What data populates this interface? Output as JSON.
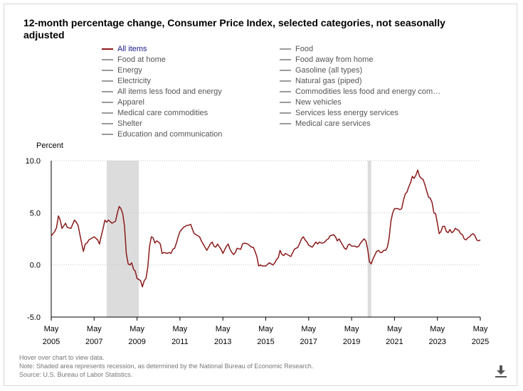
{
  "title": "12-month percentage change, Consumer Price Index, selected categories, not seasonally adjusted",
  "legend": [
    {
      "label": "All items",
      "active": true
    },
    {
      "label": "Food",
      "active": false
    },
    {
      "label": "Food at home",
      "active": false
    },
    {
      "label": "Food away from home",
      "active": false
    },
    {
      "label": "Energy",
      "active": false
    },
    {
      "label": "Gasoline (all types)",
      "active": false
    },
    {
      "label": "Electricity",
      "active": false
    },
    {
      "label": "Natural gas (piped)",
      "active": false
    },
    {
      "label": "All items less food and energy",
      "active": false
    },
    {
      "label": "Commodities less food and energy com…",
      "active": false
    },
    {
      "label": "Apparel",
      "active": false
    },
    {
      "label": "New vehicles",
      "active": false
    },
    {
      "label": "Medical care commodities",
      "active": false
    },
    {
      "label": "Services less energy services",
      "active": false
    },
    {
      "label": "Shelter",
      "active": false
    },
    {
      "label": "Medical care services",
      "active": false
    },
    {
      "label": "Education and communication",
      "active": false
    }
  ],
  "notes": {
    "hover": "Hover over chart to view data.",
    "recession": "Note: Shaded area represents recession, as determined by the National Bureau of Economic Research.",
    "source": "Source: U.S. Bureau of Labor Statistics."
  },
  "colors": {
    "series": "#8b1a1a",
    "recession": "#dcdcdc",
    "grid": "#c8c8c8"
  },
  "icons": {
    "download": "download-icon"
  },
  "chart_data": {
    "type": "line",
    "ylabel": "Percent",
    "ylim": [
      -5.0,
      10.0
    ],
    "yticks": [
      "10.0",
      "5.0",
      "0.0",
      "-5.0"
    ],
    "xlim": [
      2005.333,
      2025.333
    ],
    "xticks": [
      {
        "month": "May",
        "year": "2005",
        "x": 2005.333
      },
      {
        "month": "May",
        "year": "2007",
        "x": 2007.333
      },
      {
        "month": "May",
        "year": "2009",
        "x": 2009.333
      },
      {
        "month": "May",
        "year": "2011",
        "x": 2011.333
      },
      {
        "month": "May",
        "year": "2013",
        "x": 2013.333
      },
      {
        "month": "May",
        "year": "2015",
        "x": 2015.333
      },
      {
        "month": "May",
        "year": "2017",
        "x": 2017.333
      },
      {
        "month": "May",
        "year": "2019",
        "x": 2019.333
      },
      {
        "month": "May",
        "year": "2021",
        "x": 2021.333
      },
      {
        "month": "May",
        "year": "2023",
        "x": 2023.333
      },
      {
        "month": "May",
        "year": "2025",
        "x": 2025.333
      }
    ],
    "grid": "horizontal dotted",
    "recessions": [
      [
        2007.917,
        2009.417
      ],
      [
        2020.083,
        2020.25
      ]
    ],
    "series": [
      {
        "name": "All items",
        "points": [
          [
            2005.333,
            2.8
          ],
          [
            2005.5,
            3.2
          ],
          [
            2005.583,
            3.6
          ],
          [
            2005.667,
            4.7
          ],
          [
            2005.75,
            4.3
          ],
          [
            2005.833,
            3.5
          ],
          [
            2006.0,
            4.0
          ],
          [
            2006.083,
            3.6
          ],
          [
            2006.25,
            3.5
          ],
          [
            2006.417,
            4.3
          ],
          [
            2006.5,
            4.1
          ],
          [
            2006.583,
            3.8
          ],
          [
            2006.75,
            2.1
          ],
          [
            2006.833,
            1.3
          ],
          [
            2006.917,
            2.0
          ],
          [
            2007.0,
            2.1
          ],
          [
            2007.083,
            2.4
          ],
          [
            2007.25,
            2.6
          ],
          [
            2007.333,
            2.7
          ],
          [
            2007.5,
            2.4
          ],
          [
            2007.583,
            2.0
          ],
          [
            2007.667,
            2.8
          ],
          [
            2007.75,
            3.5
          ],
          [
            2007.833,
            4.3
          ],
          [
            2007.917,
            4.1
          ],
          [
            2008.0,
            4.3
          ],
          [
            2008.167,
            4.0
          ],
          [
            2008.333,
            4.2
          ],
          [
            2008.417,
            5.0
          ],
          [
            2008.5,
            5.6
          ],
          [
            2008.583,
            5.4
          ],
          [
            2008.667,
            4.9
          ],
          [
            2008.75,
            3.7
          ],
          [
            2008.833,
            1.1
          ],
          [
            2008.917,
            0.1
          ],
          [
            2009.0,
            0.0
          ],
          [
            2009.083,
            0.2
          ],
          [
            2009.167,
            -0.4
          ],
          [
            2009.25,
            -0.6
          ],
          [
            2009.333,
            -1.3
          ],
          [
            2009.5,
            -1.5
          ],
          [
            2009.583,
            -2.1
          ],
          [
            2009.667,
            -1.5
          ],
          [
            2009.75,
            -1.3
          ],
          [
            2009.833,
            -0.2
          ],
          [
            2009.917,
            1.8
          ],
          [
            2010.0,
            2.7
          ],
          [
            2010.083,
            2.6
          ],
          [
            2010.167,
            2.1
          ],
          [
            2010.25,
            2.3
          ],
          [
            2010.333,
            2.2
          ],
          [
            2010.417,
            2.0
          ],
          [
            2010.5,
            1.1
          ],
          [
            2010.583,
            1.2
          ],
          [
            2010.75,
            1.1
          ],
          [
            2010.833,
            1.2
          ],
          [
            2010.917,
            1.1
          ],
          [
            2011.0,
            1.5
          ],
          [
            2011.083,
            1.6
          ],
          [
            2011.167,
            2.1
          ],
          [
            2011.25,
            2.7
          ],
          [
            2011.333,
            3.2
          ],
          [
            2011.5,
            3.6
          ],
          [
            2011.667,
            3.8
          ],
          [
            2011.75,
            3.8
          ],
          [
            2011.833,
            3.9
          ],
          [
            2011.917,
            3.4
          ],
          [
            2012.0,
            3.0
          ],
          [
            2012.083,
            2.9
          ],
          [
            2012.25,
            2.7
          ],
          [
            2012.333,
            2.3
          ],
          [
            2012.5,
            1.7
          ],
          [
            2012.583,
            1.4
          ],
          [
            2012.667,
            1.7
          ],
          [
            2012.75,
            2.0
          ],
          [
            2012.833,
            2.2
          ],
          [
            2012.917,
            1.8
          ],
          [
            2013.0,
            1.7
          ],
          [
            2013.083,
            2.0
          ],
          [
            2013.25,
            1.5
          ],
          [
            2013.333,
            1.1
          ],
          [
            2013.5,
            1.8
          ],
          [
            2013.583,
            2.0
          ],
          [
            2013.667,
            1.5
          ],
          [
            2013.75,
            1.2
          ],
          [
            2013.833,
            1.0
          ],
          [
            2013.917,
            1.2
          ],
          [
            2014.0,
            1.6
          ],
          [
            2014.167,
            1.5
          ],
          [
            2014.25,
            2.0
          ],
          [
            2014.333,
            2.1
          ],
          [
            2014.5,
            2.0
          ],
          [
            2014.667,
            1.7
          ],
          [
            2014.75,
            1.7
          ],
          [
            2014.833,
            1.3
          ],
          [
            2014.917,
            0.8
          ],
          [
            2015.0,
            -0.1
          ],
          [
            2015.083,
            0.0
          ],
          [
            2015.167,
            -0.1
          ],
          [
            2015.333,
            -0.1
          ],
          [
            2015.5,
            0.2
          ],
          [
            2015.667,
            0.0
          ],
          [
            2015.75,
            0.2
          ],
          [
            2015.833,
            0.5
          ],
          [
            2015.917,
            0.7
          ],
          [
            2016.0,
            1.4
          ],
          [
            2016.083,
            1.0
          ],
          [
            2016.167,
            0.9
          ],
          [
            2016.25,
            1.1
          ],
          [
            2016.333,
            1.0
          ],
          [
            2016.5,
            0.8
          ],
          [
            2016.667,
            1.5
          ],
          [
            2016.75,
            1.6
          ],
          [
            2016.833,
            1.7
          ],
          [
            2016.917,
            2.1
          ],
          [
            2017.0,
            2.5
          ],
          [
            2017.083,
            2.7
          ],
          [
            2017.167,
            2.4
          ],
          [
            2017.25,
            2.2
          ],
          [
            2017.333,
            1.9
          ],
          [
            2017.5,
            1.7
          ],
          [
            2017.667,
            2.2
          ],
          [
            2017.75,
            2.0
          ],
          [
            2017.833,
            2.2
          ],
          [
            2017.917,
            2.1
          ],
          [
            2018.0,
            2.1
          ],
          [
            2018.083,
            2.2
          ],
          [
            2018.167,
            2.4
          ],
          [
            2018.25,
            2.5
          ],
          [
            2018.333,
            2.8
          ],
          [
            2018.5,
            2.9
          ],
          [
            2018.583,
            2.7
          ],
          [
            2018.667,
            2.3
          ],
          [
            2018.75,
            2.5
          ],
          [
            2018.833,
            2.2
          ],
          [
            2018.917,
            1.9
          ],
          [
            2019.0,
            1.6
          ],
          [
            2019.083,
            1.5
          ],
          [
            2019.167,
            1.9
          ],
          [
            2019.25,
            2.0
          ],
          [
            2019.333,
            1.8
          ],
          [
            2019.5,
            1.8
          ],
          [
            2019.583,
            1.7
          ],
          [
            2019.667,
            1.8
          ],
          [
            2019.75,
            2.1
          ],
          [
            2019.833,
            2.3
          ],
          [
            2019.917,
            2.5
          ],
          [
            2020.0,
            2.3
          ],
          [
            2020.083,
            1.5
          ],
          [
            2020.167,
            0.3
          ],
          [
            2020.25,
            0.1
          ],
          [
            2020.333,
            0.6
          ],
          [
            2020.5,
            1.3
          ],
          [
            2020.583,
            1.4
          ],
          [
            2020.667,
            1.2
          ],
          [
            2020.75,
            1.2
          ],
          [
            2020.833,
            1.4
          ],
          [
            2020.917,
            1.4
          ],
          [
            2021.0,
            1.7
          ],
          [
            2021.083,
            2.6
          ],
          [
            2021.167,
            4.2
          ],
          [
            2021.25,
            5.0
          ],
          [
            2021.333,
            5.4
          ],
          [
            2021.5,
            5.4
          ],
          [
            2021.583,
            5.3
          ],
          [
            2021.667,
            5.4
          ],
          [
            2021.75,
            6.2
          ],
          [
            2021.833,
            6.8
          ],
          [
            2021.917,
            7.0
          ],
          [
            2022.0,
            7.5
          ],
          [
            2022.083,
            7.9
          ],
          [
            2022.167,
            8.5
          ],
          [
            2022.25,
            8.3
          ],
          [
            2022.333,
            8.6
          ],
          [
            2022.417,
            9.1
          ],
          [
            2022.5,
            8.5
          ],
          [
            2022.583,
            8.3
          ],
          [
            2022.667,
            8.2
          ],
          [
            2022.75,
            7.7
          ],
          [
            2022.833,
            7.1
          ],
          [
            2022.917,
            6.5
          ],
          [
            2023.0,
            6.4
          ],
          [
            2023.083,
            6.0
          ],
          [
            2023.167,
            5.0
          ],
          [
            2023.25,
            4.9
          ],
          [
            2023.333,
            4.0
          ],
          [
            2023.417,
            3.0
          ],
          [
            2023.5,
            3.2
          ],
          [
            2023.583,
            3.7
          ],
          [
            2023.667,
            3.7
          ],
          [
            2023.75,
            3.2
          ],
          [
            2023.833,
            3.1
          ],
          [
            2023.917,
            3.4
          ],
          [
            2024.0,
            3.1
          ],
          [
            2024.083,
            3.2
          ],
          [
            2024.167,
            3.5
          ],
          [
            2024.25,
            3.4
          ],
          [
            2024.333,
            3.3
          ],
          [
            2024.417,
            3.0
          ],
          [
            2024.5,
            2.9
          ],
          [
            2024.583,
            2.5
          ],
          [
            2024.667,
            2.4
          ],
          [
            2024.75,
            2.6
          ],
          [
            2024.833,
            2.7
          ],
          [
            2024.917,
            2.9
          ],
          [
            2025.0,
            3.0
          ],
          [
            2025.083,
            2.8
          ],
          [
            2025.167,
            2.4
          ],
          [
            2025.25,
            2.3
          ],
          [
            2025.333,
            2.4
          ]
        ]
      }
    ]
  }
}
